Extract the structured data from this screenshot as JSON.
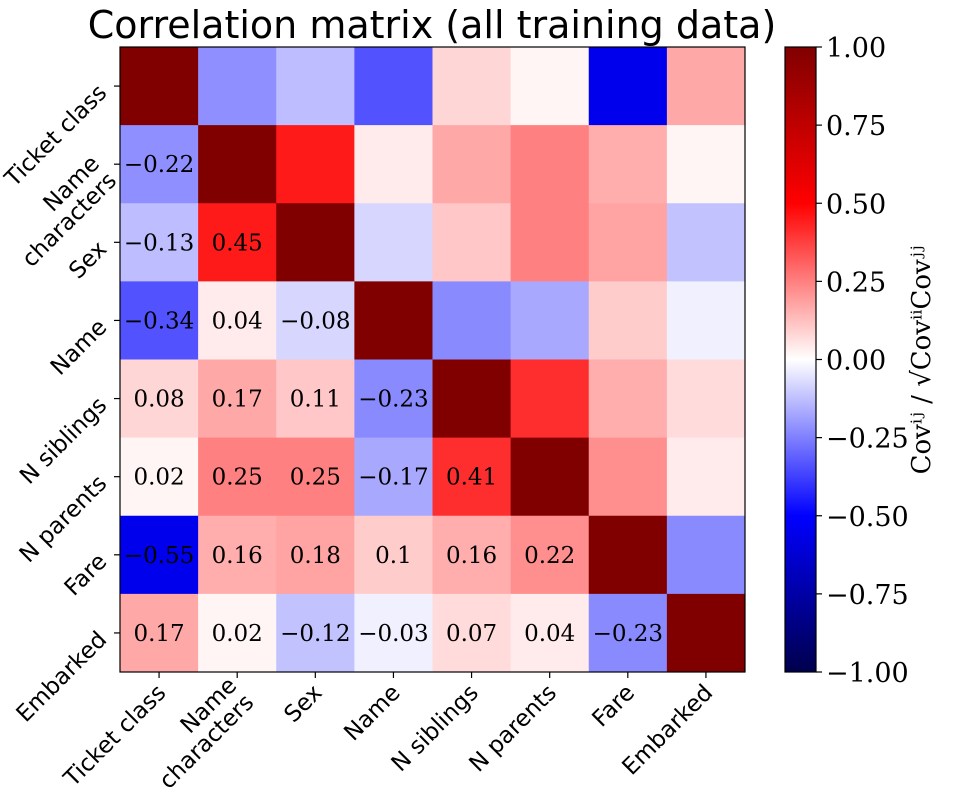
{
  "chart_data": {
    "type": "heatmap",
    "title": "Correlation matrix (all training data)",
    "row_labels": [
      "Ticket class",
      "Name characters",
      "Sex",
      "Name",
      "N siblings",
      "N parents",
      "Fare",
      "Embarked"
    ],
    "col_labels": [
      "Ticket class",
      "Name characters",
      "Sex",
      "Name",
      "N siblings",
      "N parents",
      "Fare",
      "Embarked"
    ],
    "values": [
      [
        1.0,
        -0.22,
        -0.13,
        -0.34,
        0.08,
        0.02,
        -0.55,
        0.17
      ],
      [
        -0.22,
        1.0,
        0.45,
        0.04,
        0.17,
        0.25,
        0.16,
        0.02
      ],
      [
        -0.13,
        0.45,
        1.0,
        -0.08,
        0.11,
        0.25,
        0.18,
        -0.12
      ],
      [
        -0.34,
        0.04,
        -0.08,
        1.0,
        -0.23,
        -0.17,
        0.1,
        -0.03
      ],
      [
        0.08,
        0.17,
        0.11,
        -0.23,
        1.0,
        0.41,
        0.16,
        0.07
      ],
      [
        0.02,
        0.25,
        0.25,
        -0.17,
        0.41,
        1.0,
        0.22,
        0.04
      ],
      [
        -0.55,
        0.16,
        0.18,
        0.1,
        0.16,
        0.22,
        1.0,
        -0.23
      ],
      [
        0.17,
        0.02,
        -0.12,
        -0.03,
        0.07,
        0.04,
        -0.23,
        1.0
      ]
    ],
    "cell_labels": [
      [
        "",
        "",
        "",
        "",
        "",
        "",
        "",
        ""
      ],
      [
        "−0.22",
        "",
        "",
        "",
        "",
        "",
        "",
        ""
      ],
      [
        "−0.13",
        "0.45",
        "",
        "",
        "",
        "",
        "",
        ""
      ],
      [
        "−0.34",
        "0.04",
        "−0.08",
        "",
        "",
        "",
        "",
        ""
      ],
      [
        "0.08",
        "0.17",
        "0.11",
        "−0.23",
        "",
        "",
        "",
        ""
      ],
      [
        "0.02",
        "0.25",
        "0.25",
        "−0.17",
        "0.41",
        "",
        "",
        ""
      ],
      [
        "−0.55",
        "0.16",
        "0.18",
        "0.1",
        "0.16",
        "0.22",
        "",
        ""
      ],
      [
        "0.17",
        "0.02",
        "−0.12",
        "−0.03",
        "0.07",
        "0.04",
        "−0.23",
        ""
      ]
    ],
    "colorbar": {
      "colormap": "seismic",
      "range": [
        -1.0,
        1.0
      ],
      "ticks": [
        1.0,
        0.75,
        0.5,
        0.25,
        0.0,
        -0.25,
        -0.5,
        -0.75,
        -1.0
      ],
      "tick_labels": [
        "1.00",
        "0.75",
        "0.50",
        "0.25",
        "0.00",
        "−0.25",
        "−0.50",
        "−0.75",
        "−1.00"
      ],
      "label": "Covⁱʲ / √CovⁱⁱCovʲʲ"
    },
    "grid": false
  }
}
